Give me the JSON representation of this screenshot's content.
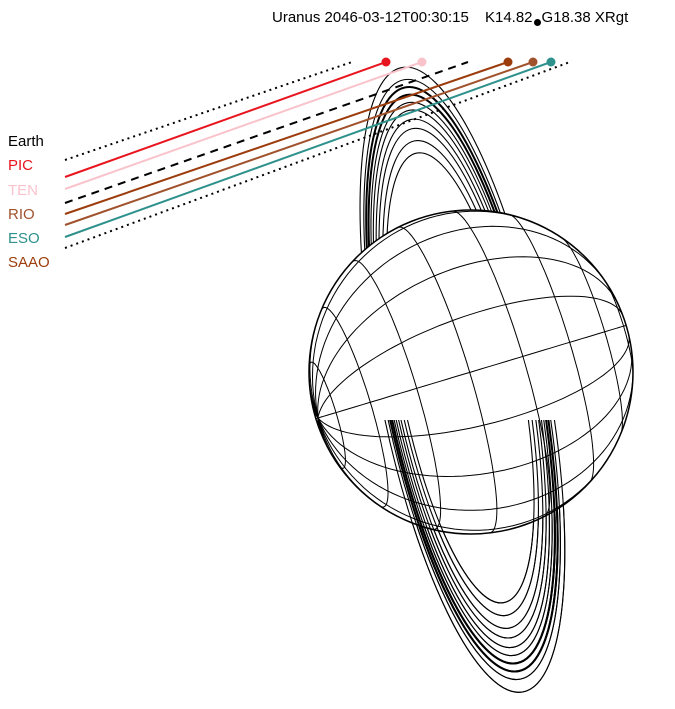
{
  "header": {
    "body": "Uranus",
    "datetime": "2046-03-12T00:30:15",
    "k_mag": "K14.82",
    "g_mag": "G18.38",
    "star_id": "XRgt"
  },
  "legend": [
    {
      "label": "Earth",
      "color": "#000000"
    },
    {
      "label": "PIC",
      "color": "#e8141e"
    },
    {
      "label": "TEN",
      "color": "#f9c3cc"
    },
    {
      "label": "RIO",
      "color": "#a0522d"
    },
    {
      "label": "ESO",
      "color": "#2e918c"
    },
    {
      "label": "SAAO",
      "color": "#9c3c0c"
    }
  ],
  "tracks": [
    {
      "observatory": "Earth",
      "color": "#000000",
      "style": "dotted"
    },
    {
      "observatory": "PIC",
      "color": "#e8141e",
      "style": "solid"
    },
    {
      "observatory": "TEN",
      "color": "#f9c3cc",
      "style": "solid"
    },
    {
      "observatory": "Earth",
      "color": "#000000",
      "style": "dashed"
    },
    {
      "observatory": "SAAO",
      "color": "#9c3c0c",
      "style": "solid"
    },
    {
      "observatory": "RIO",
      "color": "#a0522d",
      "style": "solid"
    },
    {
      "observatory": "ESO",
      "color": "#2e918c",
      "style": "solid"
    },
    {
      "observatory": "Earth",
      "color": "#000000",
      "style": "dotted"
    }
  ]
}
